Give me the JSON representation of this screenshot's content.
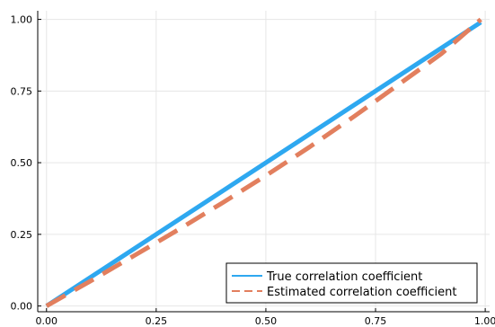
{
  "chart_data": {
    "type": "line",
    "title": "",
    "xlabel": "",
    "ylabel": "",
    "xlim": [
      -0.02,
      1.01
    ],
    "ylim": [
      -0.02,
      1.03
    ],
    "grid": true,
    "legend_position": "bottom-right",
    "x_ticks": [
      "0.00",
      "0.25",
      "0.50",
      "0.75",
      "1.00"
    ],
    "x_tick_values": [
      0,
      0.25,
      0.5,
      0.75,
      1.0
    ],
    "y_ticks": [
      "0.00",
      "0.25",
      "0.50",
      "0.75",
      "1.00"
    ],
    "y_tick_values": [
      0,
      0.25,
      0.5,
      0.75,
      1.0
    ],
    "series": [
      {
        "name": "True correlation coefficient",
        "color": "#2ea8f0",
        "style": "solid",
        "x": [
          0.0,
          0.99
        ],
        "y": [
          0.0,
          0.99
        ]
      },
      {
        "name": "Estimated correlation coefficient",
        "color": "#e27f5e",
        "style": "dashed",
        "x": [
          0.0,
          0.1,
          0.2,
          0.3,
          0.4,
          0.5,
          0.6,
          0.7,
          0.8,
          0.9,
          0.99
        ],
        "y": [
          0.0,
          0.087,
          0.176,
          0.266,
          0.359,
          0.455,
          0.555,
          0.66,
          0.77,
          0.88,
          1.0
        ]
      }
    ]
  }
}
